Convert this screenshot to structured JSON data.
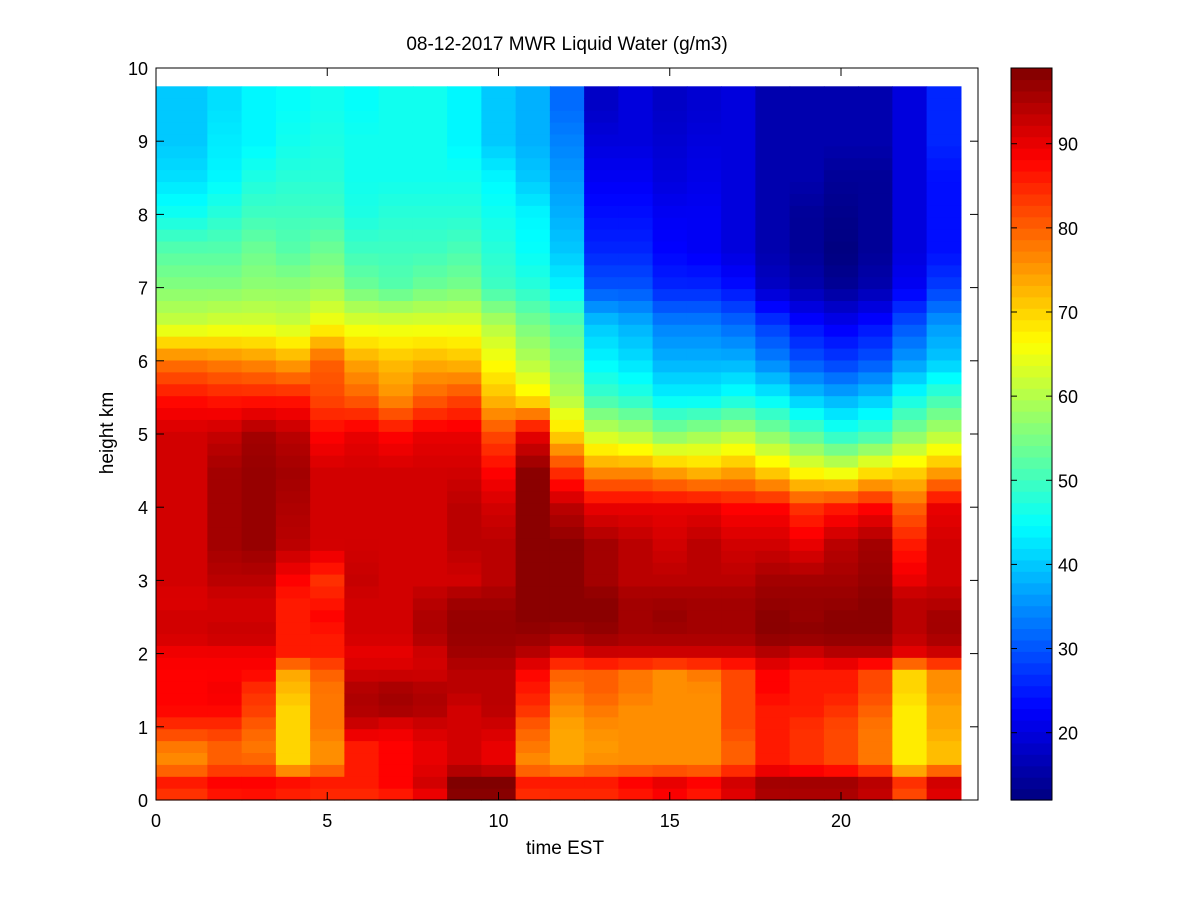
{
  "chart_data": {
    "type": "heatmap",
    "title": "08-12-2017 MWR Liquid Water (g/m3)",
    "xlabel": "time EST",
    "ylabel": "height km",
    "xlim": [
      0,
      24
    ],
    "ylim": [
      0,
      10
    ],
    "x_ticks": [
      0,
      5,
      10,
      15,
      20
    ],
    "x_tick_labels": [
      "0",
      "5",
      "10",
      "15",
      "20"
    ],
    "y_ticks": [
      0,
      1,
      2,
      3,
      4,
      5,
      6,
      7,
      8,
      9,
      10
    ],
    "y_tick_labels": [
      "0",
      "1",
      "2",
      "3",
      "4",
      "5",
      "6",
      "7",
      "8",
      "9",
      "10"
    ],
    "colorbar": {
      "colormap": "jet",
      "range": [
        12,
        99
      ],
      "ticks": [
        20,
        30,
        40,
        50,
        60,
        70,
        80,
        90
      ],
      "tick_labels": [
        "20",
        "30",
        "40",
        "50",
        "60",
        "70",
        "80",
        "90"
      ]
    },
    "grid": false,
    "time_edges": [
      0,
      1.5,
      2.5,
      3.5,
      4.5,
      5.5,
      6.5,
      7.5,
      8.5,
      9.5,
      10.5,
      11.5,
      12.5,
      13.5,
      14.5,
      15.5,
      16.5,
      17.5,
      18.5,
      19.5,
      20.5,
      21.5,
      22.5,
      23.5
    ],
    "height_top_km": 9.75,
    "profile_heights_km": [
      0.0,
      0.1,
      0.25,
      0.5,
      0.75,
      1.0,
      1.25,
      1.5,
      1.75,
      2.0,
      2.25,
      2.5,
      2.75,
      3.0,
      3.5,
      4.0,
      4.5,
      5.0,
      5.5,
      6.0,
      6.5,
      7.0,
      7.5,
      8.0,
      8.5,
      9.0,
      9.5,
      9.75
    ],
    "columns": [
      {
        "start": 0.0,
        "end": 1.5,
        "values": [
          75,
          86,
          86,
          76,
          78,
          84,
          88,
          88,
          88,
          89,
          92,
          92,
          91,
          92,
          92,
          92,
          92,
          92,
          87,
          78,
          62,
          56,
          52,
          46,
          42,
          40,
          40,
          40
        ]
      },
      {
        "start": 1.5,
        "end": 2.5,
        "values": [
          76,
          89,
          88,
          80,
          80,
          84,
          88,
          89,
          88,
          89,
          93,
          92,
          92,
          94,
          96,
          96,
          96,
          93,
          86,
          77,
          63,
          56,
          52,
          48,
          44,
          43,
          42,
          42
        ]
      },
      {
        "start": 2.5,
        "end": 3.5,
        "values": [
          78,
          89,
          88,
          80,
          78,
          80,
          83,
          84,
          88,
          89,
          93,
          92,
          92,
          94,
          97,
          97,
          97,
          96,
          86,
          76,
          63,
          57,
          54,
          50,
          47,
          44,
          44,
          44
        ]
      },
      {
        "start": 3.5,
        "end": 4.5,
        "values": [
          80,
          87,
          87,
          70,
          70,
          70,
          70,
          72,
          74,
          86,
          86,
          86,
          86,
          88,
          94,
          95,
          96,
          94,
          86,
          74,
          62,
          57,
          52,
          50,
          48,
          46,
          45,
          45
        ]
      },
      {
        "start": 4.5,
        "end": 5.5,
        "values": [
          80,
          86,
          86,
          76,
          76,
          78,
          78,
          78,
          80,
          86,
          86,
          88,
          86,
          84,
          92,
          92,
          92,
          88,
          82,
          80,
          66,
          58,
          54,
          50,
          48,
          47,
          46,
          46
        ]
      },
      {
        "start": 5.5,
        "end": 6.5,
        "values": [
          80,
          86,
          86,
          86,
          86,
          92,
          95,
          95,
          92,
          90,
          92,
          92,
          92,
          93,
          92,
          92,
          92,
          90,
          80,
          74,
          64,
          54,
          50,
          47,
          46,
          46,
          45,
          45
        ]
      },
      {
        "start": 6.5,
        "end": 7.5,
        "values": [
          78,
          88,
          88,
          88,
          88,
          90,
          96,
          96,
          92,
          90,
          92,
          92,
          92,
          92,
          92,
          92,
          92,
          88,
          76,
          72,
          64,
          52,
          50,
          48,
          46,
          46,
          46,
          46
        ]
      },
      {
        "start": 7.5,
        "end": 8.5,
        "values": [
          80,
          92,
          92,
          90,
          90,
          92,
          95,
          95,
          92,
          92,
          95,
          95,
          94,
          92,
          92,
          92,
          92,
          90,
          80,
          73,
          64,
          54,
          50,
          48,
          46,
          46,
          46,
          46
        ]
      },
      {
        "start": 8.5,
        "end": 9.5,
        "values": [
          95,
          99,
          99,
          92,
          92,
          92,
          92,
          94,
          94,
          96,
          97,
          97,
          96,
          92,
          94,
          94,
          92,
          90,
          82,
          72,
          64,
          55,
          51,
          48,
          46,
          44,
          44,
          44
        ]
      },
      {
        "start": 9.5,
        "end": 10.5,
        "values": [
          95,
          99,
          99,
          90,
          90,
          92,
          94,
          94,
          94,
          96,
          97,
          97,
          96,
          94,
          94,
          92,
          88,
          82,
          72,
          66,
          60,
          50,
          48,
          46,
          44,
          40,
          40,
          40
        ]
      },
      {
        "start": 10.5,
        "end": 11.5,
        "values": [
          78,
          86,
          86,
          76,
          78,
          80,
          84,
          86,
          88,
          94,
          97,
          98,
          98,
          98,
          98,
          98,
          98,
          90,
          68,
          60,
          55,
          48,
          45,
          44,
          40,
          38,
          38,
          38
        ]
      },
      {
        "start": 11.5,
        "end": 12.5,
        "values": [
          80,
          86,
          86,
          74,
          74,
          74,
          76,
          78,
          80,
          90,
          96,
          98,
          98,
          98,
          98,
          94,
          84,
          70,
          60,
          56,
          52,
          44,
          40,
          38,
          36,
          34,
          32,
          32
        ]
      },
      {
        "start": 12.5,
        "end": 13.5,
        "values": [
          80,
          86,
          86,
          76,
          75,
          76,
          78,
          80,
          80,
          92,
          97,
          98,
          98,
          96,
          96,
          90,
          76,
          62,
          50,
          44,
          40,
          30,
          26,
          24,
          22,
          20,
          18,
          18
        ]
      },
      {
        "start": 13.5,
        "end": 14.5,
        "values": [
          80,
          88,
          88,
          76,
          76,
          76,
          76,
          78,
          78,
          92,
          96,
          96,
          96,
          94,
          94,
          90,
          76,
          60,
          48,
          42,
          38,
          30,
          26,
          24,
          22,
          20,
          20,
          20
        ]
      },
      {
        "start": 14.5,
        "end": 15.5,
        "values": [
          82,
          90,
          90,
          76,
          76,
          76,
          76,
          76,
          76,
          92,
          96,
          97,
          96,
          94,
          92,
          90,
          74,
          56,
          44,
          38,
          34,
          26,
          23,
          22,
          20,
          19,
          18,
          18
        ]
      },
      {
        "start": 15.5,
        "end": 16.5,
        "values": [
          80,
          88,
          88,
          76,
          76,
          76,
          76,
          76,
          78,
          92,
          96,
          96,
          96,
          94,
          94,
          90,
          72,
          58,
          44,
          38,
          34,
          26,
          22,
          22,
          21,
          20,
          19,
          19
        ]
      },
      {
        "start": 16.5,
        "end": 17.5,
        "values": [
          86,
          92,
          92,
          80,
          80,
          82,
          82,
          82,
          82,
          92,
          96,
          96,
          96,
          94,
          92,
          88,
          74,
          60,
          46,
          38,
          32,
          24,
          20,
          20,
          20,
          20,
          20,
          20
        ]
      },
      {
        "start": 17.5,
        "end": 18.5,
        "values": [
          92,
          96,
          96,
          86,
          86,
          86,
          86,
          88,
          88,
          94,
          98,
          98,
          97,
          96,
          92,
          88,
          70,
          56,
          44,
          34,
          28,
          18,
          16,
          16,
          16,
          16,
          16,
          16
        ]
      },
      {
        "start": 18.5,
        "end": 19.5,
        "values": [
          92,
          96,
          96,
          84,
          84,
          84,
          86,
          86,
          86,
          92,
          98,
          97,
          97,
          96,
          90,
          84,
          66,
          52,
          40,
          30,
          24,
          16,
          14,
          14,
          16,
          16,
          16,
          16
        ]
      },
      {
        "start": 19.5,
        "end": 20.5,
        "values": [
          92,
          96,
          96,
          82,
          82,
          82,
          84,
          86,
          86,
          94,
          98,
          98,
          97,
          96,
          94,
          86,
          64,
          48,
          38,
          28,
          22,
          14,
          12,
          13,
          14,
          16,
          16,
          16
        ]
      },
      {
        "start": 20.5,
        "end": 21.5,
        "values": [
          90,
          94,
          94,
          78,
          78,
          78,
          80,
          82,
          82,
          94,
          98,
          98,
          98,
          97,
          96,
          88,
          68,
          50,
          40,
          30,
          24,
          16,
          14,
          14,
          14,
          16,
          16,
          16
        ]
      },
      {
        "start": 21.5,
        "end": 22.5,
        "values": [
          74,
          84,
          84,
          68,
          68,
          68,
          68,
          70,
          70,
          90,
          94,
          94,
          94,
          90,
          86,
          80,
          70,
          56,
          46,
          36,
          30,
          22,
          20,
          20,
          20,
          20,
          20,
          20
        ]
      },
      {
        "start": 22.5,
        "end": 23.5,
        "values": [
          86,
          92,
          92,
          72,
          72,
          74,
          74,
          76,
          76,
          92,
          96,
          96,
          94,
          92,
          92,
          90,
          74,
          60,
          50,
          40,
          36,
          28,
          24,
          24,
          24,
          26,
          26,
          26
        ]
      }
    ]
  }
}
